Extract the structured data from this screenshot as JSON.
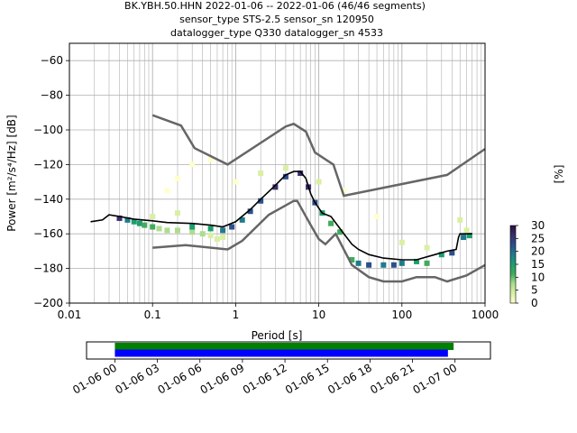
{
  "figure": {
    "title_lines": [
      "BK.YBH.50.HHN   2022-01-06 -- 2022-01-06  (46/46 segments)",
      "sensor_type STS-2.5 sensor_sn 120950",
      "datalogger_type Q330 datalogger_sn 4533"
    ]
  },
  "chart_data": [
    {
      "type": "heatmap",
      "title": "BK.YBH.50.HHN   2022-01-06 -- 2022-01-06  (46/46 segments)",
      "subtitle": [
        "sensor_type STS-2.5 sensor_sn 120950",
        "datalogger_type Q330 datalogger_sn 4533"
      ],
      "xlabel": "Period [s]",
      "ylabel": "Power [m²/s⁴/Hz] [dB]",
      "xscale": "log",
      "xlim": [
        0.01,
        1000
      ],
      "ylim": [
        -200,
        -50
      ],
      "grid": true,
      "x_ticks": [
        {
          "value": 0.01,
          "label": "0.01"
        },
        {
          "value": 0.1,
          "label": "0.1"
        },
        {
          "value": 1,
          "label": "1"
        },
        {
          "value": 10,
          "label": "10"
        },
        {
          "value": 100,
          "label": "100"
        },
        {
          "value": 1000,
          "label": "1000"
        }
      ],
      "y_ticks": [
        {
          "value": -60,
          "label": "−60"
        },
        {
          "value": -80,
          "label": "−80"
        },
        {
          "value": -100,
          "label": "−100"
        },
        {
          "value": -120,
          "label": "−120"
        },
        {
          "value": -140,
          "label": "−140"
        },
        {
          "value": -160,
          "label": "−160"
        },
        {
          "value": -180,
          "label": "−180"
        },
        {
          "value": -200,
          "label": "−200"
        }
      ],
      "colorbar": {
        "label": "[%]",
        "range": [
          0,
          30
        ],
        "ticks": [
          {
            "value": 0,
            "label": "0"
          },
          {
            "value": 5,
            "label": "5"
          },
          {
            "value": 10,
            "label": "10"
          },
          {
            "value": 15,
            "label": "15"
          },
          {
            "value": 20,
            "label": "20"
          },
          {
            "value": 25,
            "label": "25"
          },
          {
            "value": 30,
            "label": "30"
          }
        ],
        "colors": [
          "#ffffcc",
          "#d9f0a3",
          "#addd8e",
          "#41ab5d",
          "#1d9e6e",
          "#1f7a8c",
          "#2c4f8a",
          "#3b2f6e",
          "#2a0f3f"
        ]
      },
      "mode_curve": [
        [
          0.018,
          -153
        ],
        [
          0.025,
          -152
        ],
        [
          0.03,
          -149
        ],
        [
          0.04,
          -150
        ],
        [
          0.06,
          -151.5
        ],
        [
          0.1,
          -152.5
        ],
        [
          0.15,
          -153.5
        ],
        [
          0.3,
          -154
        ],
        [
          0.5,
          -155
        ],
        [
          0.7,
          -156
        ],
        [
          1,
          -153
        ],
        [
          1.5,
          -146
        ],
        [
          2,
          -140
        ],
        [
          3,
          -132
        ],
        [
          4,
          -126
        ],
        [
          5,
          -124
        ],
        [
          6,
          -124
        ],
        [
          7,
          -128
        ],
        [
          8,
          -137
        ],
        [
          9,
          -142
        ],
        [
          11,
          -148
        ],
        [
          14,
          -150
        ],
        [
          18,
          -157
        ],
        [
          25,
          -166
        ],
        [
          30,
          -169
        ],
        [
          40,
          -172
        ],
        [
          60,
          -174
        ],
        [
          100,
          -175
        ],
        [
          150,
          -175
        ],
        [
          250,
          -172
        ],
        [
          350,
          -170
        ],
        [
          450,
          -169
        ],
        [
          480,
          -162
        ],
        [
          500,
          -160
        ],
        [
          700,
          -160
        ]
      ],
      "nhnm": [
        [
          0.1,
          -91.5
        ],
        [
          0.22,
          -97.5
        ],
        [
          0.32,
          -110.5
        ],
        [
          0.8,
          -120
        ],
        [
          4,
          -98
        ],
        [
          5,
          -96.5
        ],
        [
          7,
          -101
        ],
        [
          9,
          -113
        ],
        [
          15,
          -120
        ],
        [
          20,
          -138
        ],
        [
          350,
          -126
        ],
        [
          1000,
          -111
        ]
      ],
      "nlnm": [
        [
          0.1,
          -168
        ],
        [
          0.25,
          -166.5
        ],
        [
          0.8,
          -169
        ],
        [
          1.2,
          -164
        ],
        [
          2.5,
          -149
        ],
        [
          5,
          -141
        ],
        [
          5.5,
          -141
        ],
        [
          8,
          -155
        ],
        [
          10,
          -163
        ],
        [
          12,
          -166
        ],
        [
          16,
          -160
        ],
        [
          25,
          -178
        ],
        [
          40,
          -185
        ],
        [
          60,
          -187.5
        ],
        [
          100,
          -187.5
        ],
        [
          150,
          -185
        ],
        [
          250,
          -185
        ],
        [
          350,
          -187.5
        ],
        [
          600,
          -184
        ],
        [
          1000,
          -178
        ]
      ],
      "density_bins": [
        {
          "p": 0.04,
          "db": -151,
          "pct": 28
        },
        {
          "p": 0.05,
          "db": -152,
          "pct": 20
        },
        {
          "p": 0.06,
          "db": -153,
          "pct": 16
        },
        {
          "p": 0.07,
          "db": -154,
          "pct": 14
        },
        {
          "p": 0.08,
          "db": -155,
          "pct": 12
        },
        {
          "p": 0.1,
          "db": -156,
          "pct": 10
        },
        {
          "p": 0.12,
          "db": -157,
          "pct": 9
        },
        {
          "p": 0.15,
          "db": -158,
          "pct": 8
        },
        {
          "p": 0.2,
          "db": -158,
          "pct": 7
        },
        {
          "p": 0.3,
          "db": -159,
          "pct": 7
        },
        {
          "p": 0.4,
          "db": -160,
          "pct": 6
        },
        {
          "p": 0.5,
          "db": -161,
          "pct": 5
        },
        {
          "p": 0.6,
          "db": -163,
          "pct": 4
        },
        {
          "p": 0.7,
          "db": -162,
          "pct": 5
        },
        {
          "p": 0.3,
          "db": -156,
          "pct": 14
        },
        {
          "p": 0.5,
          "db": -157,
          "pct": 16
        },
        {
          "p": 0.7,
          "db": -158,
          "pct": 20
        },
        {
          "p": 0.9,
          "db": -156,
          "pct": 24
        },
        {
          "p": 1.2,
          "db": -152,
          "pct": 18
        },
        {
          "p": 1.5,
          "db": -147,
          "pct": 22
        },
        {
          "p": 2,
          "db": -141,
          "pct": 24
        },
        {
          "p": 3,
          "db": -133,
          "pct": 26
        },
        {
          "p": 4,
          "db": -127,
          "pct": 22
        },
        {
          "p": 6,
          "db": -125,
          "pct": 26
        },
        {
          "p": 7.5,
          "db": -133,
          "pct": 28
        },
        {
          "p": 9,
          "db": -142,
          "pct": 24
        },
        {
          "p": 11,
          "db": -148,
          "pct": 14
        },
        {
          "p": 14,
          "db": -154,
          "pct": 12
        },
        {
          "p": 18,
          "db": -159,
          "pct": 10
        },
        {
          "p": 25,
          "db": -175,
          "pct": 12
        },
        {
          "p": 30,
          "db": -177,
          "pct": 18
        },
        {
          "p": 40,
          "db": -178,
          "pct": 22
        },
        {
          "p": 60,
          "db": -178,
          "pct": 20
        },
        {
          "p": 80,
          "db": -178,
          "pct": 22
        },
        {
          "p": 100,
          "db": -177,
          "pct": 20
        },
        {
          "p": 150,
          "db": -176,
          "pct": 16
        },
        {
          "p": 200,
          "db": -177,
          "pct": 12
        },
        {
          "p": 300,
          "db": -172,
          "pct": 16
        },
        {
          "p": 400,
          "db": -171,
          "pct": 22
        },
        {
          "p": 550,
          "db": -162,
          "pct": 20
        },
        {
          "p": 650,
          "db": -161,
          "pct": 16
        },
        {
          "p": 0.1,
          "db": -150,
          "pct": 4
        },
        {
          "p": 0.2,
          "db": -148,
          "pct": 3
        },
        {
          "p": 0.15,
          "db": -135,
          "pct": 1
        },
        {
          "p": 0.2,
          "db": -128,
          "pct": 1
        },
        {
          "p": 0.3,
          "db": -120,
          "pct": 1
        },
        {
          "p": 0.5,
          "db": -117,
          "pct": 1
        },
        {
          "p": 1,
          "db": -130,
          "pct": 1
        },
        {
          "p": 2,
          "db": -125,
          "pct": 2
        },
        {
          "p": 4,
          "db": -122,
          "pct": 3
        },
        {
          "p": 10,
          "db": -130,
          "pct": 2
        },
        {
          "p": 20,
          "db": -135,
          "pct": 1
        },
        {
          "p": 50,
          "db": -150,
          "pct": 1
        },
        {
          "p": 100,
          "db": -165,
          "pct": 2
        },
        {
          "p": 200,
          "db": -168,
          "pct": 3
        },
        {
          "p": 600,
          "db": -158,
          "pct": 4
        },
        {
          "p": 500,
          "db": -152,
          "pct": 3
        }
      ]
    },
    {
      "type": "bar",
      "title": "",
      "x_ticks": [
        "01-06 00",
        "01-06 03",
        "01-06 06",
        "01-06 09",
        "01-06 12",
        "01-06 15",
        "01-06 18",
        "01-06 21",
        "01-07 00"
      ],
      "time_range_hours": [
        -2,
        26.5
      ],
      "series": [
        {
          "color": "#008000",
          "start_hours": 0,
          "end_hours": 23.9
        },
        {
          "color": "#0000ff",
          "start_hours": 0,
          "end_hours": 23.5
        }
      ]
    }
  ]
}
